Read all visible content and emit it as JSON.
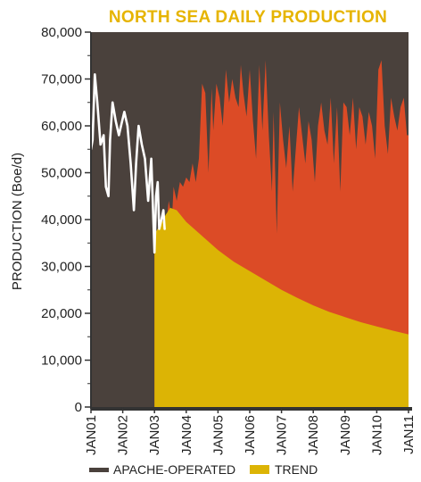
{
  "chart_data": {
    "type": "area",
    "title": "NORTH SEA DAILY PRODUCTION",
    "ylabel": "PRODUCTION (Boe/d)",
    "xlabel": "",
    "ylim": [
      0,
      80000
    ],
    "yticks": [
      0,
      10000,
      20000,
      30000,
      40000,
      50000,
      60000,
      70000,
      80000
    ],
    "ytick_labels": [
      "0",
      "10,000",
      "20,000",
      "30,000",
      "40,000",
      "50,000",
      "60,000",
      "70,000",
      "80,000"
    ],
    "x_range": [
      2001.0,
      2011.0
    ],
    "xticks": [
      2001,
      2002,
      2003,
      2004,
      2005,
      2006,
      2007,
      2008,
      2009,
      2010,
      2011
    ],
    "xtick_labels": [
      "JAN01",
      "JAN02",
      "JAN03",
      "JAN04",
      "JAN05",
      "JAN06",
      "JAN07",
      "JAN08",
      "JAN09",
      "JAN10",
      "JAN11"
    ],
    "legend": {
      "placement": "bottom",
      "entries": [
        "APACHE-OPERATED",
        "TREND"
      ]
    },
    "colors": {
      "title": "#e6b400",
      "background": "#4a413c",
      "apache_operated": "#dc4b26",
      "trend": "#dcb405",
      "pre_acquisition_line": "#ffffff",
      "legend_apache_swatch": "#4a413c",
      "axis": "#333333"
    },
    "series": [
      {
        "name": "APACHE-OPERATED",
        "x": [
          2003.0,
          2003.1,
          2003.2,
          2003.3,
          2003.35,
          2003.45,
          2003.55,
          2003.6,
          2003.7,
          2003.8,
          2003.9,
          2004.0,
          2004.1,
          2004.2,
          2004.3,
          2004.4,
          2004.5,
          2004.6,
          2004.7,
          2004.8,
          2004.85,
          2004.95,
          2005.05,
          2005.15,
          2005.25,
          2005.35,
          2005.45,
          2005.55,
          2005.65,
          2005.72,
          2005.8,
          2005.9,
          2006.0,
          2006.1,
          2006.2,
          2006.3,
          2006.4,
          2006.5,
          2006.6,
          2006.7,
          2006.75,
          2006.85,
          2006.95,
          2007.05,
          2007.15,
          2007.25,
          2007.35,
          2007.45,
          2007.55,
          2007.65,
          2007.75,
          2007.85,
          2007.95,
          2008.05,
          2008.15,
          2008.25,
          2008.35,
          2008.45,
          2008.55,
          2008.65,
          2008.75,
          2008.85,
          2008.95,
          2009.05,
          2009.15,
          2009.25,
          2009.35,
          2009.45,
          2009.55,
          2009.65,
          2009.75,
          2009.85,
          2009.95,
          2010.05,
          2010.15,
          2010.25,
          2010.35,
          2010.45,
          2010.55,
          2010.65,
          2010.75,
          2010.85,
          2010.95,
          2011.0
        ],
        "values": [
          38000,
          35000,
          33000,
          42000,
          38000,
          44000,
          40000,
          47000,
          44000,
          48000,
          47000,
          49000,
          48000,
          52000,
          48000,
          53000,
          69000,
          67000,
          50000,
          68000,
          59000,
          69000,
          66000,
          60000,
          72000,
          65000,
          70000,
          66000,
          64000,
          73000,
          67000,
          62000,
          72000,
          61000,
          53000,
          73000,
          59000,
          74000,
          58000,
          46000,
          63000,
          37000,
          65000,
          57000,
          51000,
          60000,
          46000,
          55000,
          64000,
          58000,
          52000,
          61000,
          57000,
          48000,
          60000,
          65000,
          59000,
          56000,
          66000,
          52000,
          64000,
          46000,
          65000,
          64000,
          58000,
          66000,
          55000,
          64000,
          62000,
          56000,
          63000,
          60000,
          53000,
          72000,
          74000,
          60000,
          54000,
          66000,
          62000,
          59000,
          64000,
          66000,
          58000,
          58000
        ]
      },
      {
        "name": "TREND",
        "x": [
          2003.0,
          2003.2,
          2003.35,
          2003.5,
          2003.7,
          2004.0,
          2004.5,
          2005.0,
          2005.5,
          2006.0,
          2006.5,
          2007.0,
          2007.5,
          2008.0,
          2008.5,
          2009.0,
          2009.5,
          2010.0,
          2010.5,
          2011.0
        ],
        "values": [
          37000,
          39000,
          41000,
          42500,
          42000,
          39500,
          36500,
          33500,
          31000,
          29000,
          27000,
          25000,
          23300,
          21700,
          20300,
          19200,
          18100,
          17200,
          16300,
          15500
        ]
      },
      {
        "name": "",
        "x": [
          2001.0,
          2001.05,
          2001.12,
          2001.2,
          2001.3,
          2001.4,
          2001.47,
          2001.55,
          2001.6,
          2001.68,
          2001.78,
          2001.88,
          2001.98,
          2002.05,
          2002.15,
          2002.25,
          2002.35,
          2002.42,
          2002.5,
          2002.6,
          2002.7,
          2002.8,
          2002.9,
          2003.0,
          2003.05,
          2003.1,
          2003.15,
          2003.22,
          2003.28,
          2003.32
        ],
        "values": [
          55000,
          57000,
          71000,
          65000,
          56000,
          58000,
          47000,
          45000,
          57000,
          65000,
          61000,
          58000,
          61000,
          63000,
          60000,
          52000,
          42000,
          52000,
          60000,
          56000,
          53000,
          44000,
          53000,
          33000,
          45000,
          48000,
          38000,
          40000,
          42000,
          38000
        ]
      }
    ]
  }
}
